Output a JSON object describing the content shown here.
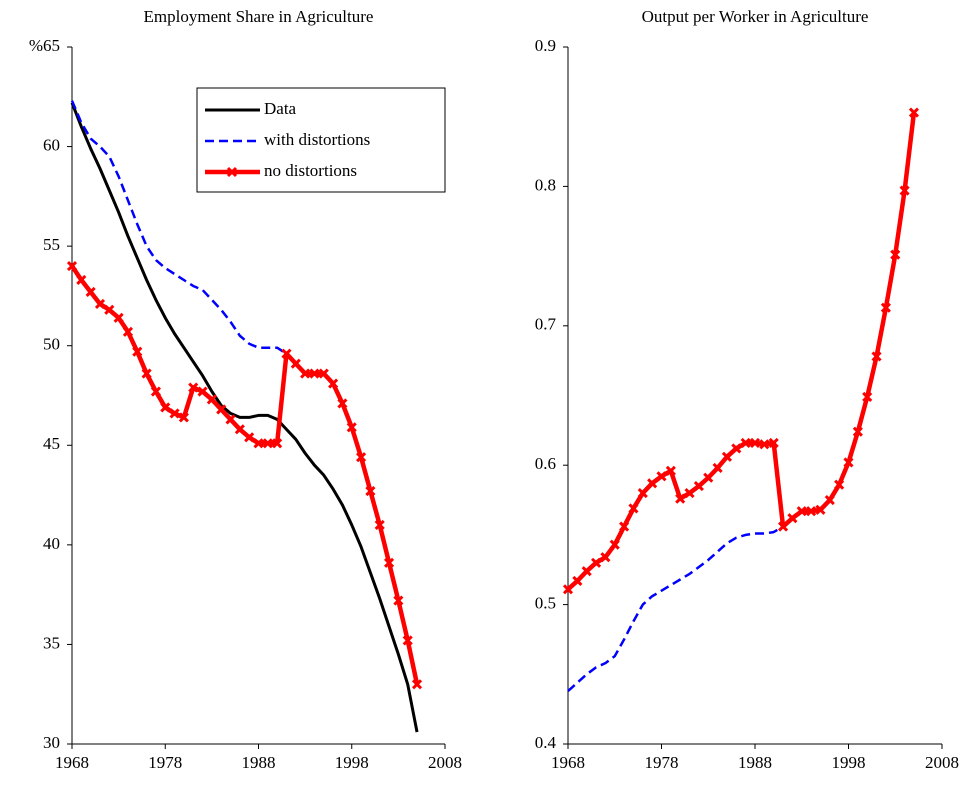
{
  "chart_data": [
    {
      "type": "line",
      "title": "Employment Share in Agriculture",
      "x": [
        1968,
        1969,
        1970,
        1971,
        1972,
        1973,
        1974,
        1975,
        1976,
        1977,
        1978,
        1979,
        1980,
        1981,
        1982,
        1983,
        1984,
        1985,
        1986,
        1987,
        1988,
        1989,
        1990,
        1991,
        1992,
        1993,
        1994,
        1995,
        1996,
        1997,
        1998,
        1999,
        2000,
        2001,
        2002,
        2003,
        2004,
        2005
      ],
      "xlim": [
        1968,
        2008
      ],
      "xticks": [
        1968,
        1978,
        1988,
        1998,
        2008
      ],
      "ylim": [
        30,
        65
      ],
      "yticks": [
        30,
        35,
        40,
        45,
        50,
        55,
        60,
        {
          "value": 65,
          "label": "%65"
        }
      ],
      "legend": "top-right",
      "series": [
        {
          "name": "Data",
          "color": "#000000",
          "style": "solid",
          "values": [
            62.2,
            61.0,
            59.9,
            58.9,
            57.8,
            56.7,
            55.5,
            54.4,
            53.3,
            52.3,
            51.4,
            50.6,
            49.9,
            49.2,
            48.5,
            47.7,
            47.0,
            46.6,
            46.4,
            46.4,
            46.5,
            46.5,
            46.3,
            45.8,
            45.3,
            44.6,
            44.0,
            43.5,
            42.8,
            42.0,
            41.0,
            39.9,
            38.6,
            37.3,
            35.9,
            34.5,
            33.0,
            30.6
          ]
        },
        {
          "name": "with distortions",
          "color": "#0000ff",
          "style": "dashed",
          "values": [
            62.3,
            61.2,
            60.4,
            60.0,
            59.5,
            58.5,
            57.3,
            56.1,
            55.0,
            54.3,
            53.9,
            53.6,
            53.3,
            53.0,
            52.8,
            52.3,
            51.8,
            51.2,
            50.5,
            50.1,
            49.9,
            49.9,
            49.9,
            49.6,
            49.1,
            48.6,
            48.6,
            48.6,
            48.1,
            47.1,
            45.9,
            44.4,
            42.7,
            41.0,
            39.1,
            37.2,
            35.2,
            33.0
          ]
        },
        {
          "name": "no distortions",
          "color": "#ff0000",
          "style": "solid",
          "marker": "x",
          "values": [
            54.0,
            53.3,
            52.7,
            52.1,
            51.8,
            51.4,
            50.7,
            49.7,
            48.6,
            47.7,
            46.9,
            46.6,
            46.4,
            47.9,
            47.7,
            47.3,
            46.8,
            46.3,
            45.8,
            45.4,
            45.1,
            45.1,
            45.1,
            49.6,
            49.1,
            48.6,
            48.6,
            48.6,
            48.1,
            47.1,
            45.9,
            44.4,
            42.7,
            41.0,
            39.1,
            37.2,
            35.2,
            33.0
          ]
        }
      ]
    },
    {
      "type": "line",
      "title": "Output per Worker in Agriculture",
      "x": [
        1968,
        1969,
        1970,
        1971,
        1972,
        1973,
        1974,
        1975,
        1976,
        1977,
        1978,
        1979,
        1980,
        1981,
        1982,
        1983,
        1984,
        1985,
        1986,
        1987,
        1988,
        1989,
        1990,
        1991,
        1992,
        1993,
        1994,
        1995,
        1996,
        1997,
        1998,
        1999,
        2000,
        2001,
        2002,
        2003,
        2004,
        2005
      ],
      "xlim": [
        1968,
        2008
      ],
      "xticks": [
        1968,
        1978,
        1988,
        1998,
        2008
      ],
      "ylim": [
        0.4,
        0.9
      ],
      "yticks": [
        0.4,
        0.5,
        0.6,
        0.7,
        0.8,
        0.9
      ],
      "series": [
        {
          "color": "#0000ff",
          "style": "dashed",
          "values": [
            0.438,
            0.444,
            0.45,
            0.455,
            0.458,
            0.463,
            0.475,
            0.488,
            0.5,
            0.506,
            0.51,
            0.514,
            0.518,
            0.522,
            0.527,
            0.532,
            0.538,
            0.544,
            0.548,
            0.55,
            0.551,
            0.551,
            0.552,
            0.556,
            0.562,
            0.567,
            0.567,
            0.568,
            0.575,
            0.586,
            0.602,
            0.624,
            0.649,
            0.678,
            0.713,
            0.751,
            0.797,
            0.853
          ]
        },
        {
          "color": "#ff0000",
          "style": "solid",
          "marker": "x",
          "values": [
            0.511,
            0.517,
            0.524,
            0.53,
            0.534,
            0.543,
            0.556,
            0.569,
            0.58,
            0.587,
            0.592,
            0.596,
            0.576,
            0.58,
            0.585,
            0.591,
            0.598,
            0.606,
            0.612,
            0.616,
            0.616,
            0.615,
            0.616,
            0.556,
            0.562,
            0.567,
            0.567,
            0.568,
            0.575,
            0.586,
            0.602,
            0.624,
            0.649,
            0.678,
            0.713,
            0.751,
            0.797,
            0.853
          ]
        }
      ]
    }
  ]
}
